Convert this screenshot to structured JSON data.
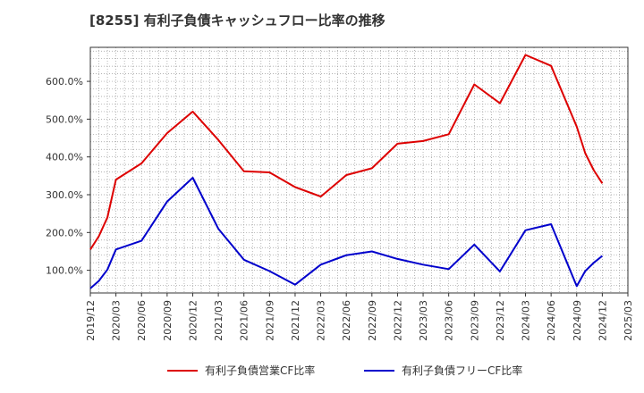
{
  "chart_data": {
    "type": "line",
    "title": "[8255]  有利子負債キャッシュフロー比率の推移",
    "xlabel": "",
    "ylabel": "",
    "ylim": [
      40,
      690
    ],
    "y_ticks": [
      "100.0%",
      "200.0%",
      "300.0%",
      "400.0%",
      "500.0%",
      "600.0%"
    ],
    "y_tick_values": [
      100,
      200,
      300,
      400,
      500,
      600
    ],
    "x_ticks": [
      "2019/12",
      "2020/03",
      "2020/06",
      "2020/09",
      "2020/12",
      "2021/03",
      "2021/06",
      "2021/09",
      "2021/12",
      "2022/03",
      "2022/06",
      "2022/09",
      "2022/12",
      "2023/03",
      "2023/06",
      "2023/09",
      "2023/12",
      "2024/03",
      "2024/06",
      "2024/09",
      "2024/12",
      "2025/03"
    ],
    "x_tick_values": [
      0,
      3,
      6,
      9,
      12,
      15,
      18,
      21,
      24,
      27,
      30,
      33,
      36,
      39,
      42,
      45,
      48,
      51,
      54,
      57,
      60,
      63
    ],
    "grid": true,
    "legend_position": "bottom",
    "series": [
      {
        "name": "有利子負債営業CF比率",
        "color": "#dd0000",
        "x": [
          0,
          1,
          2,
          3,
          6,
          9,
          12,
          15,
          18,
          21,
          24,
          27,
          30,
          33,
          36,
          39,
          42,
          45,
          48,
          51,
          54,
          57,
          58,
          59,
          60
        ],
        "values": [
          155,
          190,
          240,
          340,
          383,
          463,
          520,
          445,
          362,
          359,
          320,
          295,
          352,
          370,
          435,
          442,
          460,
          592,
          542,
          670,
          641,
          480,
          410,
          365,
          330
        ]
      },
      {
        "name": "有利子負債フリーCF比率",
        "color": "#0000cc",
        "x": [
          0,
          1,
          2,
          3,
          6,
          9,
          12,
          15,
          18,
          21,
          24,
          27,
          30,
          33,
          36,
          39,
          42,
          45,
          48,
          51,
          54,
          57,
          58,
          59,
          60
        ],
        "values": [
          52,
          72,
          102,
          155,
          178,
          282,
          345,
          210,
          128,
          98,
          62,
          115,
          140,
          150,
          130,
          115,
          103,
          168,
          97,
          206,
          222,
          58,
          98,
          120,
          138
        ]
      }
    ]
  }
}
